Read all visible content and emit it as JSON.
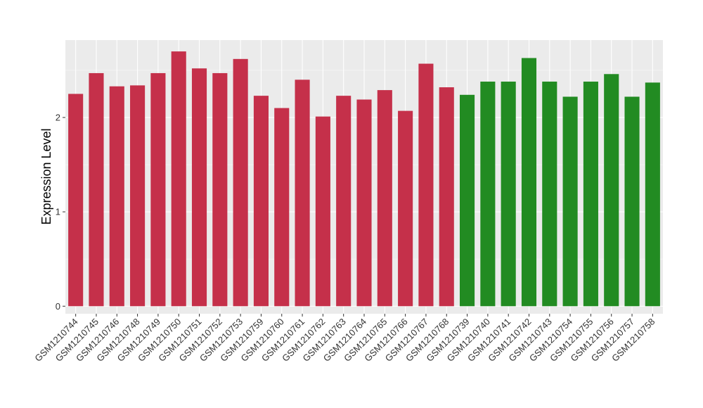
{
  "chart_data": {
    "type": "bar",
    "title": "",
    "xlabel": "",
    "ylabel": "Expression Level",
    "ylim": [
      -0.08,
      2.82
    ],
    "yticks": [
      0,
      1,
      2
    ],
    "grid": true,
    "background": "#ebebeb",
    "categories": [
      "GSM1210744",
      "GSM1210745",
      "GSM1210746",
      "GSM1210748",
      "GSM1210749",
      "GSM1210750",
      "GSM1210751",
      "GSM1210752",
      "GSM1210753",
      "GSM1210759",
      "GSM1210760",
      "GSM1210761",
      "GSM1210762",
      "GSM1210763",
      "GSM1210764",
      "GSM1210765",
      "GSM1210766",
      "GSM1210767",
      "GSM1210768",
      "GSM1210739",
      "GSM1210740",
      "GSM1210741",
      "GSM1210742",
      "GSM1210743",
      "GSM1210754",
      "GSM1210755",
      "GSM1210756",
      "GSM1210757",
      "GSM1210758"
    ],
    "values": [
      2.25,
      2.47,
      2.33,
      2.34,
      2.47,
      2.7,
      2.52,
      2.47,
      2.62,
      2.23,
      2.1,
      2.4,
      2.01,
      2.23,
      2.19,
      2.29,
      2.07,
      2.57,
      2.32,
      2.24,
      2.38,
      2.38,
      2.63,
      2.38,
      2.22,
      2.38,
      2.46,
      2.22,
      2.37
    ],
    "groups": [
      "red",
      "red",
      "red",
      "red",
      "red",
      "red",
      "red",
      "red",
      "red",
      "red",
      "red",
      "red",
      "red",
      "red",
      "red",
      "red",
      "red",
      "red",
      "red",
      "green",
      "green",
      "green",
      "green",
      "green",
      "green",
      "green",
      "green",
      "green",
      "green"
    ],
    "colors": {
      "red": "#c5304a",
      "green": "#228b22"
    }
  }
}
